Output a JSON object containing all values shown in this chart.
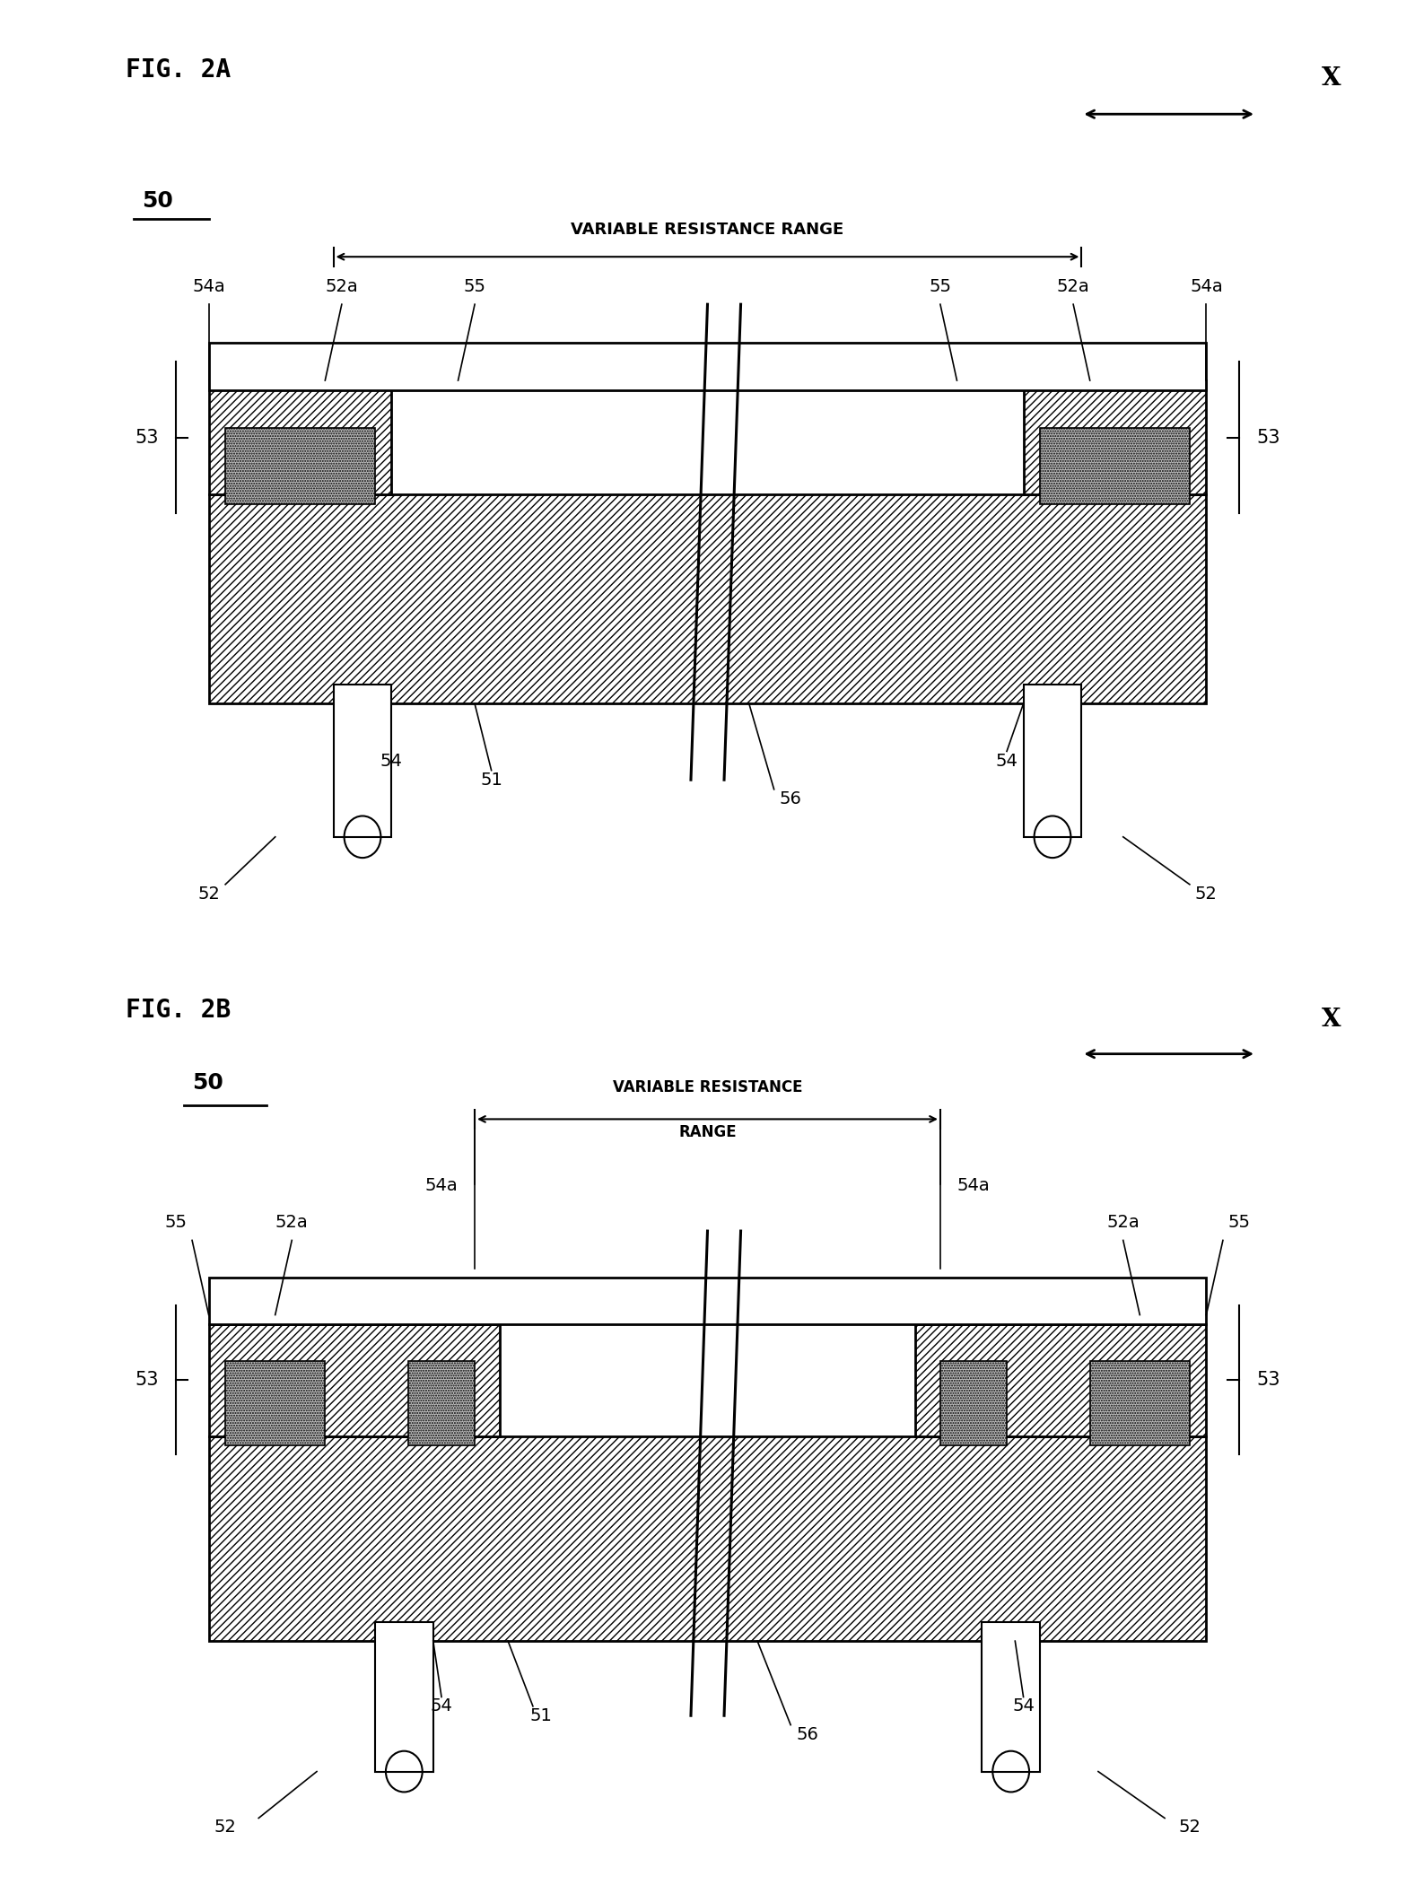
{
  "fig_title_A": "FIG. 2A",
  "fig_title_B": "FIG. 2B",
  "label_50": "50",
  "label_x": "X",
  "label_vrr_A": "VARIABLE RESISTANCE RANGE",
  "label_vrr_B1": "VARIABLE RESISTANCE",
  "label_vrr_B2": "RANGE",
  "bg": "#ffffff",
  "font_size_title": 20,
  "font_size_ref": 14,
  "font_size_50": 18,
  "font_size_x": 20
}
